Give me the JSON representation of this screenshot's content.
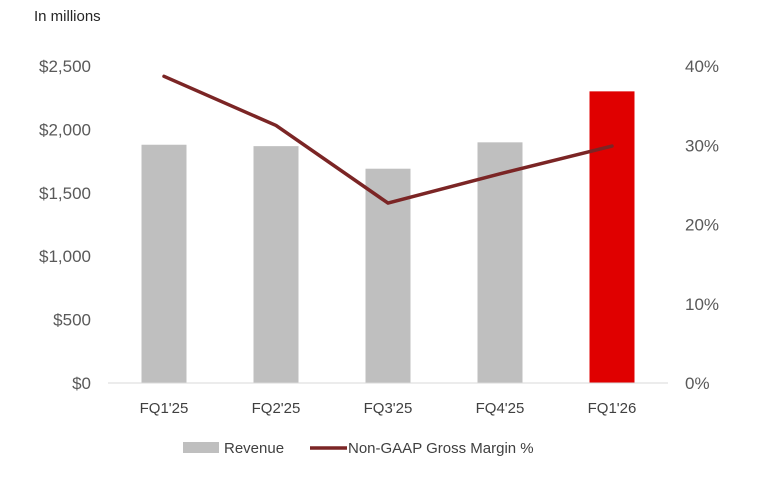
{
  "chart_data": {
    "type": "bar",
    "unit_label": "In millions",
    "categories": [
      "FQ1'25",
      "FQ2'25",
      "FQ3'25",
      "FQ4'25",
      "FQ1'26"
    ],
    "series": [
      {
        "name": "Revenue",
        "type": "bar",
        "axis": "left",
        "values": [
          1879,
          1868,
          1690,
          1898,
          2300
        ],
        "colors": [
          "#bfbfbf",
          "#bfbfbf",
          "#bfbfbf",
          "#bfbfbf",
          "#e00000"
        ]
      },
      {
        "name": "Non-GAAP Gross Margin %",
        "type": "line",
        "axis": "right",
        "values": [
          38.7,
          32.5,
          22.7,
          26.4,
          29.9
        ],
        "color": "#7b2525"
      }
    ],
    "y_left": {
      "ylim": [
        0,
        2500
      ],
      "ticks": [
        0,
        500,
        1000,
        1500,
        2000,
        2500
      ],
      "tick_labels": [
        "$0",
        "$500",
        "$1,000",
        "$1,500",
        "$2,000",
        "$2,500"
      ]
    },
    "y_right": {
      "ylim": [
        0,
        40
      ],
      "ticks": [
        0,
        10,
        20,
        30,
        40
      ],
      "tick_labels": [
        "0%",
        "10%",
        "20%",
        "30%",
        "40%"
      ]
    },
    "grid": false,
    "legend_position": "bottom"
  }
}
